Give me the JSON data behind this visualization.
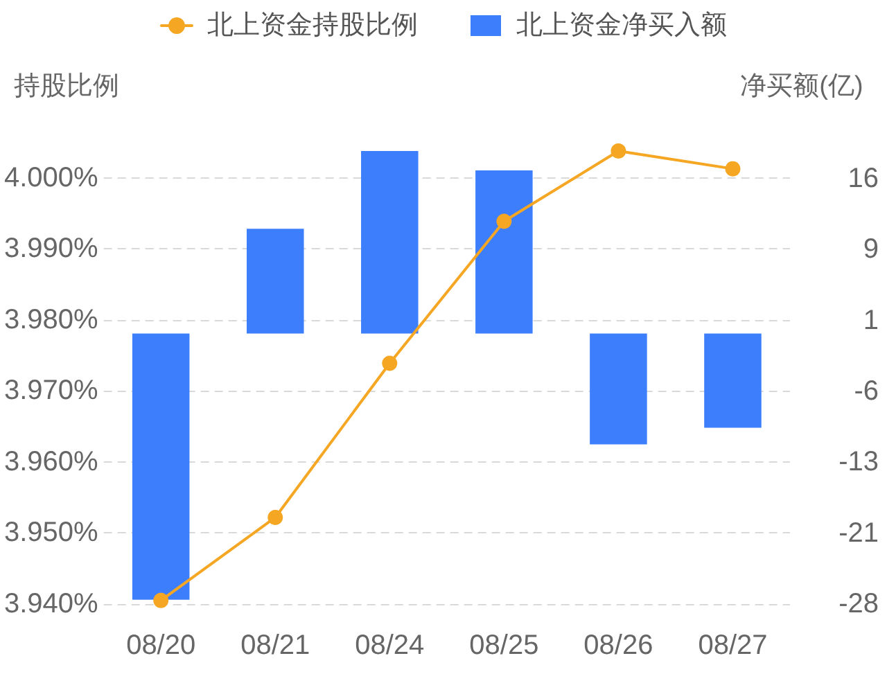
{
  "chart_data": {
    "type": "bar",
    "categories": [
      "08/20",
      "08/21",
      "08/24",
      "08/25",
      "08/26",
      "08/27"
    ],
    "series": [
      {
        "name": "北上资金持股比例",
        "type": "line",
        "color": "#f5a623",
        "values": [
          3.9405,
          3.9522,
          3.9739,
          3.9939,
          4.0038,
          4.0013
        ]
      },
      {
        "name": "北上资金净买入额",
        "axis": "y2",
        "color": "#3d7efc",
        "values": [
          -27.4,
          10.8,
          18.8,
          16.8,
          -11.4,
          -9.7
        ]
      }
    ],
    "ylabel": "持股比例",
    "y2label": "净买额(亿)",
    "ylim": [
      3.94,
      4.0038
    ],
    "yticks": [
      {
        "value": 3.94,
        "label": "3.940%"
      },
      {
        "value": 3.95,
        "label": "3.950%"
      },
      {
        "value": 3.96,
        "label": "3.960%"
      },
      {
        "value": 3.97,
        "label": "3.970%"
      },
      {
        "value": 3.98,
        "label": "3.980%"
      },
      {
        "value": 3.99,
        "label": "3.990%"
      },
      {
        "value": 4.0,
        "label": "4.000%"
      }
    ],
    "y2lim": [
      -27.85,
      18.8
    ],
    "y2ticks": [
      {
        "value": -27.85,
        "label": "-28"
      },
      {
        "value": -20.55,
        "label": "-21"
      },
      {
        "value": -13.25,
        "label": "-13"
      },
      {
        "value": -5.95,
        "label": "-6"
      },
      {
        "value": 1.35,
        "label": "1"
      },
      {
        "value": 8.65,
        "label": "9"
      },
      {
        "value": 15.95,
        "label": "16"
      }
    ],
    "grid": "y",
    "legend": "top",
    "marker": "circle"
  }
}
